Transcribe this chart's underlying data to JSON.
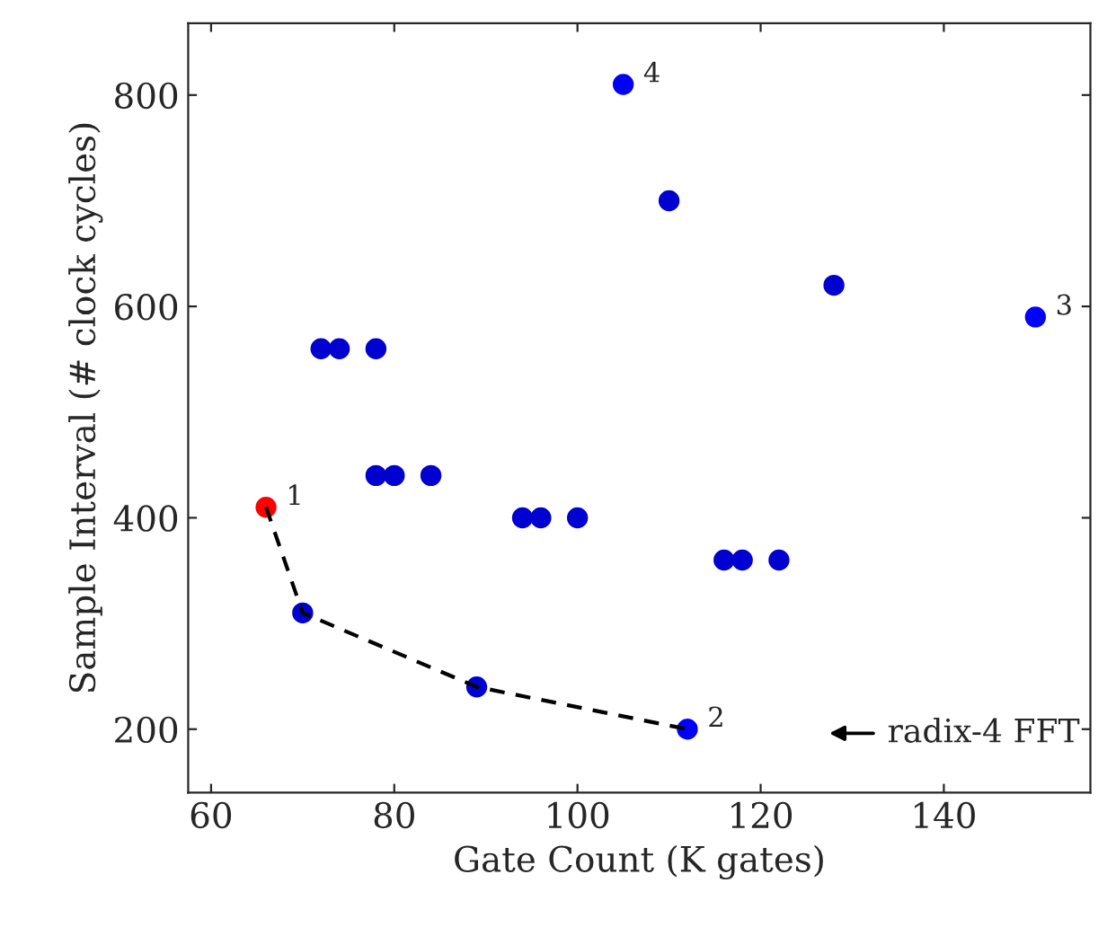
{
  "chart_data": {
    "type": "scatter",
    "xlabel": "Gate Count (K gates)",
    "ylabel": "Sample Interval (# clock cycles)",
    "xlim": [
      57.5,
      156
    ],
    "ylim": [
      140,
      868
    ],
    "xticks": [
      60,
      80,
      100,
      120,
      140
    ],
    "yticks": [
      200,
      400,
      600,
      800
    ],
    "grid": false,
    "legend": false,
    "marker": "circle",
    "series": [
      {
        "color": "#0000d0",
        "x": [
          72,
          74,
          78,
          78,
          80,
          84,
          94,
          96,
          100,
          110,
          128,
          116,
          118,
          122,
          70,
          89
        ],
        "values": [
          560,
          560,
          560,
          440,
          440,
          440,
          400,
          400,
          400,
          700,
          620,
          360,
          360,
          360,
          310,
          240
        ]
      },
      {
        "color": "#0000ff",
        "x": [
          105,
          150,
          112
        ],
        "values": [
          810,
          590,
          200
        ]
      },
      {
        "color": "#ff0000",
        "x": [
          66
        ],
        "values": [
          410
        ]
      },
      {
        "type": "line",
        "color": "#000000",
        "line_style": "dashed",
        "marker": "none",
        "x": [
          66,
          70,
          89,
          112
        ],
        "values": [
          410,
          310,
          240,
          200
        ]
      }
    ],
    "annotations": [
      {
        "text": "1",
        "x": 66,
        "y": 410
      },
      {
        "text": "2",
        "x": 112,
        "y": 200
      },
      {
        "text": "3",
        "x": 150,
        "y": 590
      },
      {
        "text": "4",
        "x": 105,
        "y": 810
      },
      "radix-4 FFT"
    ]
  }
}
